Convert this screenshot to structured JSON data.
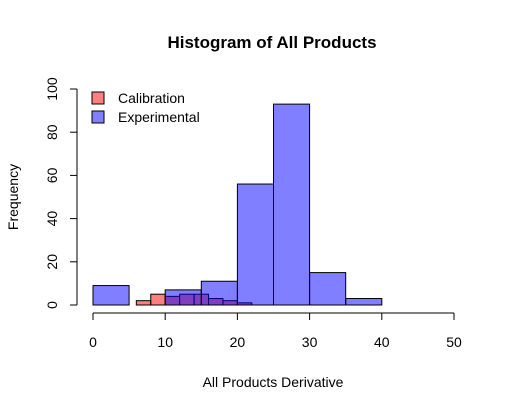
{
  "chart_data": {
    "type": "histogram",
    "title": "Histogram of All Products",
    "xlabel": "All Products Derivative",
    "ylabel": "Frequency",
    "xlim": [
      0,
      50
    ],
    "ylim": [
      0,
      100
    ],
    "x_ticks": [
      0,
      10,
      20,
      30,
      40,
      50
    ],
    "y_ticks": [
      0,
      20,
      40,
      60,
      80,
      100
    ],
    "grid": false,
    "legend_position": "top-left",
    "series": [
      {
        "name": "Calibration",
        "color": "#ff0000",
        "opacity": 0.5,
        "bins": [
          {
            "x0": 6,
            "x1": 8,
            "count": 2
          },
          {
            "x0": 8,
            "x1": 10,
            "count": 5
          },
          {
            "x0": 10,
            "x1": 12,
            "count": 4
          },
          {
            "x0": 12,
            "x1": 14,
            "count": 5
          },
          {
            "x0": 14,
            "x1": 16,
            "count": 5
          },
          {
            "x0": 16,
            "x1": 18,
            "count": 3
          },
          {
            "x0": 18,
            "x1": 20,
            "count": 2
          },
          {
            "x0": 20,
            "x1": 22,
            "count": 1
          }
        ]
      },
      {
        "name": "Experimental",
        "color": "#0000ff",
        "opacity": 0.5,
        "bins": [
          {
            "x0": 0,
            "x1": 5,
            "count": 9
          },
          {
            "x0": 5,
            "x1": 10,
            "count": 0
          },
          {
            "x0": 10,
            "x1": 15,
            "count": 7
          },
          {
            "x0": 15,
            "x1": 20,
            "count": 11
          },
          {
            "x0": 20,
            "x1": 25,
            "count": 56
          },
          {
            "x0": 25,
            "x1": 30,
            "count": 93
          },
          {
            "x0": 30,
            "x1": 35,
            "count": 15
          },
          {
            "x0": 35,
            "x1": 40,
            "count": 3
          }
        ]
      }
    ]
  }
}
